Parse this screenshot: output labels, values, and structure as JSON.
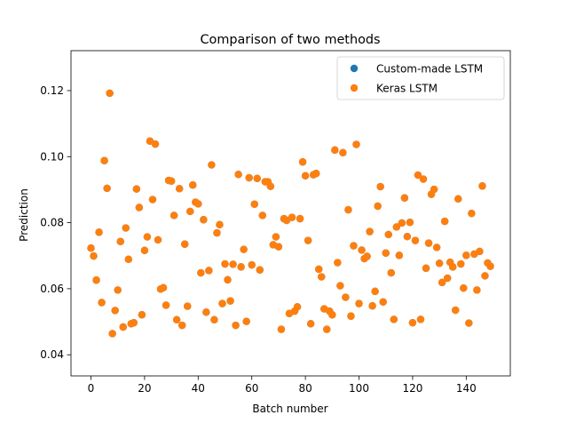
{
  "chart_data": {
    "type": "scatter",
    "title": "Comparison of two methods",
    "xlabel": "Batch number",
    "ylabel": "Prediction",
    "xlim": [
      -7.45,
      156.45
    ],
    "ylim": [
      0.0336,
      0.1321
    ],
    "xticks": [
      0,
      20,
      40,
      60,
      80,
      100,
      120,
      140
    ],
    "yticks": [
      0.04,
      0.06,
      0.08,
      0.1,
      0.12
    ],
    "ytick_labels": [
      "0.04",
      "0.06",
      "0.08",
      "0.10",
      "0.12"
    ],
    "grid": false,
    "legend_position": "top-right",
    "series": [
      {
        "name": "Custom-made LSTM",
        "color": "#1f77b4",
        "values": [
          0.0723,
          0.0699,
          0.0626,
          0.0771,
          0.0558,
          0.0988,
          0.0904,
          0.1192,
          0.0464,
          0.0534,
          0.0596,
          0.0743,
          0.0484,
          0.0784,
          0.0689,
          0.0494,
          0.0497,
          0.0902,
          0.0846,
          0.0521,
          0.0716,
          0.0757,
          0.1047,
          0.087,
          0.1038,
          0.0748,
          0.0599,
          0.0603,
          0.055,
          0.0928,
          0.0926,
          0.0822,
          0.0506,
          0.0903,
          0.0489,
          0.0735,
          0.0547,
          0.0834,
          0.0914,
          0.0862,
          0.0857,
          0.0648,
          0.0809,
          0.0529,
          0.0655,
          0.0975,
          0.0506,
          0.0769,
          0.0794,
          0.0555,
          0.0675,
          0.0627,
          0.0563,
          0.0674,
          0.0489,
          0.0946,
          0.0666,
          0.0719,
          0.0501,
          0.0936,
          0.0672,
          0.0856,
          0.0934,
          0.0657,
          0.0822,
          0.0924,
          0.0924,
          0.091,
          0.0733,
          0.0757,
          0.0727,
          0.0477,
          0.0812,
          0.0807,
          0.0525,
          0.0816,
          0.0532,
          0.0545,
          0.0812,
          0.0984,
          0.0942,
          0.0746,
          0.0494,
          0.0945,
          0.0949,
          0.0659,
          0.0636,
          0.0539,
          0.0477,
          0.0532,
          0.0521,
          0.102,
          0.0679,
          0.0609,
          0.1012,
          0.0574,
          0.0839,
          0.0517,
          0.073,
          0.1037,
          0.0555,
          0.0717,
          0.0691,
          0.0698,
          0.0773,
          0.0548,
          0.0592,
          0.085,
          0.0909,
          0.056,
          0.0708,
          0.0764,
          0.0648,
          0.0507,
          0.0787,
          0.0701,
          0.0799,
          0.0875,
          0.0758,
          0.0801,
          0.0497,
          0.0746,
          0.0944,
          0.0507,
          0.0932,
          0.0662,
          0.0738,
          0.0886,
          0.0901,
          0.0725,
          0.0677,
          0.0619,
          0.0804,
          0.0632,
          0.068,
          0.0666,
          0.0535,
          0.0872,
          0.0675,
          0.0602,
          0.0701,
          0.0496,
          0.0828,
          0.0705,
          0.0596,
          0.0713,
          0.0911,
          0.0639,
          0.0678,
          0.0668
        ]
      },
      {
        "name": "Keras LSTM",
        "color": "#ff7f0e",
        "values": [
          0.0723,
          0.0699,
          0.0626,
          0.0771,
          0.0558,
          0.0988,
          0.0904,
          0.1192,
          0.0464,
          0.0534,
          0.0596,
          0.0743,
          0.0484,
          0.0784,
          0.0689,
          0.0494,
          0.0497,
          0.0902,
          0.0846,
          0.0521,
          0.0716,
          0.0757,
          0.1047,
          0.087,
          0.1038,
          0.0748,
          0.0599,
          0.0603,
          0.055,
          0.0928,
          0.0926,
          0.0822,
          0.0506,
          0.0903,
          0.0489,
          0.0735,
          0.0547,
          0.0834,
          0.0914,
          0.0862,
          0.0857,
          0.0648,
          0.0809,
          0.0529,
          0.0655,
          0.0975,
          0.0506,
          0.0769,
          0.0794,
          0.0555,
          0.0675,
          0.0627,
          0.0563,
          0.0674,
          0.0489,
          0.0946,
          0.0666,
          0.0719,
          0.0501,
          0.0936,
          0.0672,
          0.0856,
          0.0934,
          0.0657,
          0.0822,
          0.0924,
          0.0924,
          0.091,
          0.0733,
          0.0757,
          0.0727,
          0.0477,
          0.0812,
          0.0807,
          0.0525,
          0.0816,
          0.0532,
          0.0545,
          0.0812,
          0.0984,
          0.0942,
          0.0746,
          0.0494,
          0.0945,
          0.0949,
          0.0659,
          0.0636,
          0.0539,
          0.0477,
          0.0532,
          0.0521,
          0.102,
          0.0679,
          0.0609,
          0.1012,
          0.0574,
          0.0839,
          0.0517,
          0.073,
          0.1037,
          0.0555,
          0.0717,
          0.0691,
          0.0698,
          0.0773,
          0.0548,
          0.0592,
          0.085,
          0.0909,
          0.056,
          0.0708,
          0.0764,
          0.0648,
          0.0507,
          0.0787,
          0.0701,
          0.0799,
          0.0875,
          0.0758,
          0.0801,
          0.0497,
          0.0746,
          0.0944,
          0.0507,
          0.0932,
          0.0662,
          0.0738,
          0.0886,
          0.0901,
          0.0725,
          0.0677,
          0.0619,
          0.0804,
          0.0632,
          0.068,
          0.0666,
          0.0535,
          0.0872,
          0.0675,
          0.0602,
          0.0701,
          0.0496,
          0.0828,
          0.0705,
          0.0596,
          0.0713,
          0.0911,
          0.0639,
          0.0678,
          0.0668
        ]
      }
    ]
  }
}
